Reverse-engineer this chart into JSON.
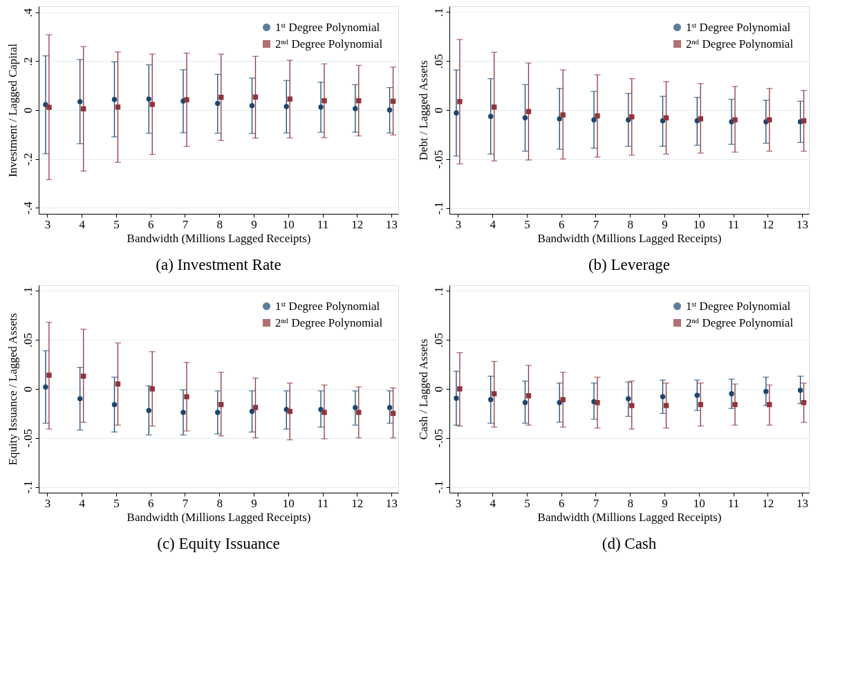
{
  "chart_data": [
    {
      "type": "scatter",
      "title": "(a) Investment Rate",
      "xlabel": "Bandwidth (Millions Lagged Receipts)",
      "ylabel": "Investment / Lagged Capital",
      "xlim": [
        2.75,
        13.2
      ],
      "xticks": [
        3,
        4,
        5,
        6,
        7,
        8,
        9,
        10,
        11,
        12,
        13
      ],
      "ylim": [
        -0.425,
        0.425
      ],
      "yticks": [
        {
          "value": -0.4,
          "label": "-.4"
        },
        {
          "value": -0.2,
          "label": "-.2"
        },
        0,
        {
          "value": 0.2,
          "label": ".2"
        },
        {
          "value": 0.4,
          "label": ".4"
        }
      ],
      "grid": "y",
      "legend": "top right",
      "series": [
        {
          "name": "1ˢᵗ Degree Polynomial",
          "color": "#1a476f",
          "marker": "circle",
          "x": [
            2.95,
            3.95,
            4.95,
            5.95,
            6.95,
            7.95,
            8.95,
            9.95,
            10.95,
            11.95,
            12.95
          ],
          "values": [
            0.022,
            0.034,
            0.043,
            0.045,
            0.037,
            0.027,
            0.018,
            0.014,
            0.012,
            0.006,
            0.0
          ],
          "errors": [
            [
              -0.179,
              0.222
            ],
            [
              -0.138,
              0.207
            ],
            [
              -0.11,
              0.197
            ],
            [
              -0.095,
              0.185
            ],
            [
              -0.093,
              0.165
            ],
            [
              -0.095,
              0.146
            ],
            [
              -0.096,
              0.131
            ],
            [
              -0.094,
              0.121
            ],
            [
              -0.091,
              0.114
            ],
            [
              -0.091,
              0.104
            ],
            [
              -0.094,
              0.092
            ]
          ]
        },
        {
          "name": "2ⁿᵈ Degree Polynomial",
          "color": "#90353b",
          "marker": "square",
          "x": [
            3.05,
            4.05,
            5.05,
            6.05,
            7.05,
            8.05,
            9.05,
            10.05,
            11.05,
            12.05,
            13.05
          ],
          "values": [
            0.011,
            0.005,
            0.012,
            0.023,
            0.042,
            0.052,
            0.053,
            0.045,
            0.038,
            0.038,
            0.036
          ],
          "errors": [
            [
              -0.285,
              0.308
            ],
            [
              -0.25,
              0.26
            ],
            [
              -0.214,
              0.238
            ],
            [
              -0.182,
              0.229
            ],
            [
              -0.149,
              0.233
            ],
            [
              -0.125,
              0.229
            ],
            [
              -0.115,
              0.22
            ],
            [
              -0.114,
              0.204
            ],
            [
              -0.113,
              0.189
            ],
            [
              -0.106,
              0.183
            ],
            [
              -0.102,
              0.176
            ]
          ]
        }
      ]
    },
    {
      "type": "scatter",
      "title": "(b) Leverage",
      "xlabel": "Bandwidth (Millions Lagged Receipts)",
      "ylabel": "Debt / Lagged Assets",
      "xlim": [
        2.75,
        13.2
      ],
      "xticks": [
        3,
        4,
        5,
        6,
        7,
        8,
        9,
        10,
        11,
        12,
        13
      ],
      "ylim": [
        -0.106,
        0.106
      ],
      "yticks": [
        {
          "value": -0.1,
          "label": "-.1"
        },
        {
          "value": -0.05,
          "label": "-.05"
        },
        0,
        {
          "value": 0.05,
          "label": ".05"
        },
        {
          "value": 0.1,
          "label": ".1"
        }
      ],
      "grid": "y",
      "legend": "top right",
      "series": [
        {
          "name": "1ˢᵗ Degree Polynomial",
          "color": "#1a476f",
          "marker": "circle",
          "x": [
            2.95,
            3.95,
            4.95,
            5.95,
            6.95,
            7.95,
            8.95,
            9.95,
            10.95,
            11.95,
            12.95
          ],
          "values": [
            -0.003,
            -0.0065,
            -0.008,
            -0.009,
            -0.01,
            -0.01,
            -0.011,
            -0.011,
            -0.012,
            -0.012,
            -0.012
          ],
          "errors": [
            [
              -0.047,
              0.041
            ],
            [
              -0.045,
              0.032
            ],
            [
              -0.042,
              0.026
            ],
            [
              -0.04,
              0.022
            ],
            [
              -0.039,
              0.019
            ],
            [
              -0.037,
              0.017
            ],
            [
              -0.037,
              0.014
            ],
            [
              -0.036,
              0.013
            ],
            [
              -0.035,
              0.011
            ],
            [
              -0.034,
              0.01
            ],
            [
              -0.033,
              0.009
            ]
          ]
        },
        {
          "name": "2ⁿᵈ Degree Polynomial",
          "color": "#90353b",
          "marker": "square",
          "x": [
            3.05,
            4.05,
            5.05,
            6.05,
            7.05,
            8.05,
            9.05,
            10.05,
            11.05,
            12.05,
            13.05
          ],
          "values": [
            0.0086,
            0.003,
            -0.0016,
            -0.005,
            -0.006,
            -0.007,
            -0.008,
            -0.009,
            -0.01,
            -0.01,
            -0.011
          ],
          "errors": [
            [
              -0.055,
              0.072
            ],
            [
              -0.052,
              0.059
            ],
            [
              -0.051,
              0.048
            ],
            [
              -0.05,
              0.041
            ],
            [
              -0.048,
              0.036
            ],
            [
              -0.046,
              0.032
            ],
            [
              -0.045,
              0.029
            ],
            [
              -0.044,
              0.027
            ],
            [
              -0.043,
              0.024
            ],
            [
              -0.042,
              0.022
            ],
            [
              -0.042,
              0.02
            ]
          ]
        }
      ]
    },
    {
      "type": "scatter",
      "title": "(c) Equity Issuance",
      "xlabel": "Bandwidth (Millions Lagged Receipts)",
      "ylabel": "Equity Issuance / Lagged Assets",
      "xlim": [
        2.75,
        13.2
      ],
      "xticks": [
        3,
        4,
        5,
        6,
        7,
        8,
        9,
        10,
        11,
        12,
        13
      ],
      "ylim": [
        -0.106,
        0.106
      ],
      "yticks": [
        {
          "value": -0.1,
          "label": "-.1"
        },
        {
          "value": -0.05,
          "label": "-.05"
        },
        0,
        {
          "value": 0.05,
          "label": ".05"
        },
        {
          "value": 0.1,
          "label": ".1"
        }
      ],
      "grid": "y",
      "legend": "top right",
      "series": [
        {
          "name": "1ˢᵗ Degree Polynomial",
          "color": "#1a476f",
          "marker": "circle",
          "x": [
            2.95,
            3.95,
            4.95,
            5.95,
            6.95,
            7.95,
            8.95,
            9.95,
            10.95,
            11.95,
            12.95
          ],
          "values": [
            0.002,
            -0.01,
            -0.016,
            -0.022,
            -0.024,
            -0.024,
            -0.023,
            -0.021,
            -0.021,
            -0.019,
            -0.019
          ],
          "errors": [
            [
              -0.035,
              0.039
            ],
            [
              -0.042,
              0.022
            ],
            [
              -0.044,
              0.012
            ],
            [
              -0.047,
              0.003
            ],
            [
              -0.047,
              -0.001
            ],
            [
              -0.046,
              -0.002
            ],
            [
              -0.044,
              -0.002
            ],
            [
              -0.041,
              -0.002
            ],
            [
              -0.039,
              -0.002
            ],
            [
              -0.037,
              -0.002
            ],
            [
              -0.035,
              -0.002
            ]
          ]
        },
        {
          "name": "2ⁿᵈ Degree Polynomial",
          "color": "#90353b",
          "marker": "square",
          "x": [
            3.05,
            4.05,
            5.05,
            6.05,
            7.05,
            8.05,
            9.05,
            10.05,
            11.05,
            12.05,
            13.05
          ],
          "values": [
            0.014,
            0.013,
            0.005,
            0.0,
            -0.008,
            -0.016,
            -0.019,
            -0.023,
            -0.024,
            -0.024,
            -0.025
          ],
          "errors": [
            [
              -0.041,
              0.068
            ],
            [
              -0.034,
              0.061
            ],
            [
              -0.037,
              0.047
            ],
            [
              -0.038,
              0.038
            ],
            [
              -0.043,
              0.027
            ],
            [
              -0.048,
              0.017
            ],
            [
              -0.05,
              0.011
            ],
            [
              -0.052,
              0.006
            ],
            [
              -0.051,
              0.004
            ],
            [
              -0.05,
              0.002
            ],
            [
              -0.05,
              0.001
            ]
          ]
        }
      ]
    },
    {
      "type": "scatter",
      "title": "(d) Cash",
      "xlabel": "Bandwidth (Millions Lagged Receipts)",
      "ylabel": "Cash / Lagged Assets",
      "xlim": [
        2.75,
        13.2
      ],
      "xticks": [
        3,
        4,
        5,
        6,
        7,
        8,
        9,
        10,
        11,
        12,
        13
      ],
      "ylim": [
        -0.106,
        0.106
      ],
      "yticks": [
        {
          "value": -0.1,
          "label": "-.1"
        },
        {
          "value": -0.05,
          "label": "-.05"
        },
        0,
        {
          "value": 0.05,
          "label": ".05"
        },
        {
          "value": 0.1,
          "label": ".1"
        }
      ],
      "grid": "y",
      "legend": "top right",
      "series": [
        {
          "name": "1ˢᵗ Degree Polynomial",
          "color": "#1a476f",
          "marker": "circle",
          "x": [
            2.95,
            3.95,
            4.95,
            5.95,
            6.95,
            7.95,
            8.95,
            9.95,
            10.95,
            11.95,
            12.95
          ],
          "values": [
            -0.0095,
            -0.011,
            -0.014,
            -0.014,
            -0.013,
            -0.01,
            -0.008,
            -0.0065,
            -0.005,
            -0.0026,
            -0.0014
          ],
          "errors": [
            [
              -0.037,
              0.018
            ],
            [
              -0.035,
              0.013
            ],
            [
              -0.035,
              0.008
            ],
            [
              -0.034,
              0.006
            ],
            [
              -0.031,
              0.006
            ],
            [
              -0.028,
              0.007
            ],
            [
              -0.025,
              0.009
            ],
            [
              -0.022,
              0.009
            ],
            [
              -0.02,
              0.01
            ],
            [
              -0.017,
              0.012
            ],
            [
              -0.015,
              0.013
            ]
          ]
        },
        {
          "name": "2ⁿᵈ Degree Polynomial",
          "color": "#90353b",
          "marker": "square",
          "x": [
            3.05,
            4.05,
            5.05,
            6.05,
            7.05,
            8.05,
            9.05,
            10.05,
            11.05,
            12.05,
            13.05
          ],
          "values": [
            0.0,
            -0.005,
            -0.007,
            -0.011,
            -0.014,
            -0.017,
            -0.017,
            -0.016,
            -0.016,
            -0.016,
            -0.014
          ],
          "errors": [
            [
              -0.038,
              0.037
            ],
            [
              -0.039,
              0.028
            ],
            [
              -0.037,
              0.024
            ],
            [
              -0.039,
              0.017
            ],
            [
              -0.04,
              0.012
            ],
            [
              -0.041,
              0.008
            ],
            [
              -0.04,
              0.006
            ],
            [
              -0.038,
              0.006
            ],
            [
              -0.037,
              0.005
            ],
            [
              -0.037,
              0.004
            ],
            [
              -0.034,
              0.006
            ]
          ]
        }
      ]
    }
  ]
}
